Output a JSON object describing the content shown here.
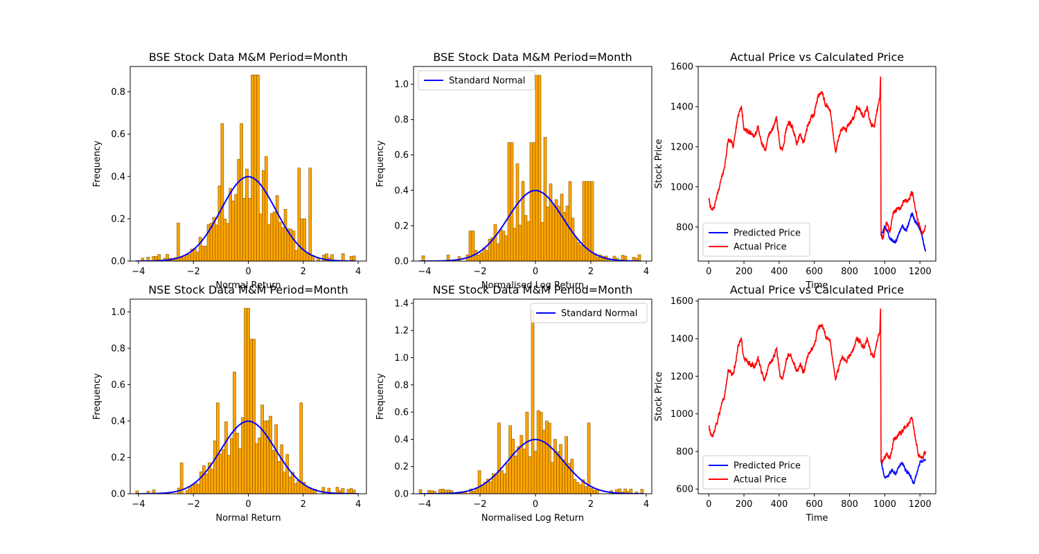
{
  "figure": {
    "background": "#ffffff",
    "colors": {
      "bar": "#FFA500",
      "bar_edge": "#7a5200",
      "normal": "#0000FF",
      "predicted": "#0000FF",
      "actual": "#FF0000"
    }
  },
  "chart_data": [
    {
      "id": "bse-normal",
      "type": "bar",
      "title": "BSE Stock Data M&M Period=Month",
      "xlabel": "Normal Return",
      "ylabel": "Frequency",
      "xlim": [
        -4.3,
        4.3
      ],
      "ylim": [
        0,
        0.92
      ],
      "xticks": [
        -4,
        -2,
        0,
        2,
        4
      ],
      "yticks": [
        0.0,
        0.2,
        0.4,
        0.6,
        0.8
      ],
      "ytick_labels": [
        "0.0",
        "0.2",
        "0.4",
        "0.6",
        "0.8"
      ],
      "hist_seed": 11,
      "hist_range": [
        -4.1,
        3.9
      ],
      "hist_peaks": [
        [
          0.15,
          0.88
        ],
        [
          0.3,
          0.88
        ],
        [
          -0.25,
          0.65
        ],
        [
          -0.95,
          0.65
        ],
        [
          -1.35,
          0.18
        ],
        [
          1.85,
          0.44
        ],
        [
          2.25,
          0.44
        ],
        [
          -2.55,
          0.18
        ],
        [
          2.0,
          0.2
        ]
      ],
      "curve": {
        "name": "Standard Normal",
        "show_legend": false
      },
      "legend": null,
      "grid": false
    },
    {
      "id": "bse-log",
      "type": "bar",
      "title": "BSE Stock Data M&M Period=Month",
      "xlabel": "Normalised Log Return",
      "ylabel": "Frequency",
      "xlim": [
        -4.4,
        4.2
      ],
      "ylim": [
        0,
        1.1
      ],
      "xticks": [
        -4,
        -2,
        0,
        2,
        4
      ],
      "yticks": [
        0.0,
        0.2,
        0.4,
        0.6,
        0.8,
        1.0
      ],
      "ytick_labels": [
        "0.0",
        "0.2",
        "0.4",
        "0.6",
        "0.8",
        "1.0"
      ],
      "hist_seed": 23,
      "hist_range": [
        -4.2,
        3.8
      ],
      "hist_peaks": [
        [
          0.1,
          1.05
        ],
        [
          -0.9,
          0.67
        ],
        [
          -0.65,
          0.55
        ],
        [
          -0.1,
          0.67
        ],
        [
          0.35,
          0.7
        ],
        [
          1.8,
          0.45
        ],
        [
          2.0,
          0.45
        ],
        [
          1.25,
          0.45
        ],
        [
          -2.3,
          0.17
        ]
      ],
      "curve": {
        "name": "Standard Normal",
        "show_legend": true
      },
      "legend": {
        "placement": "upper-left",
        "entries": [
          "Standard Normal"
        ]
      },
      "grid": false
    },
    {
      "id": "bse-price",
      "type": "line",
      "title": "Actual Price vs Calculated Price",
      "xlabel": "Time",
      "ylabel": "Stock Price",
      "xlim": [
        -60,
        1290
      ],
      "ylim": [
        630,
        1600
      ],
      "xticks": [
        0,
        200,
        400,
        600,
        800,
        1000,
        1200
      ],
      "yticks": [
        800,
        1000,
        1200,
        1400,
        1600
      ],
      "series": [
        {
          "name": "Predicted Price",
          "color": "#0000FF",
          "x_start": 978,
          "knots": [
            [
              978,
              760
            ],
            [
              1000,
              800
            ],
            [
              1010,
              790
            ],
            [
              1030,
              745
            ],
            [
              1060,
              720
            ],
            [
              1080,
              770
            ],
            [
              1100,
              810
            ],
            [
              1120,
              780
            ],
            [
              1140,
              830
            ],
            [
              1155,
              870
            ],
            [
              1170,
              830
            ],
            [
              1190,
              810
            ],
            [
              1210,
              760
            ],
            [
              1225,
              700
            ],
            [
              1232,
              680
            ]
          ],
          "noise": 12,
          "seed": 5
        },
        {
          "name": "Actual Price",
          "color": "#FF0000",
          "x_start": 0,
          "knots": [
            [
              0,
              940
            ],
            [
              15,
              880
            ],
            [
              30,
              900
            ],
            [
              60,
              1000
            ],
            [
              90,
              1100
            ],
            [
              110,
              1230
            ],
            [
              140,
              1210
            ],
            [
              165,
              1350
            ],
            [
              185,
              1400
            ],
            [
              200,
              1290
            ],
            [
              230,
              1270
            ],
            [
              260,
              1250
            ],
            [
              280,
              1300
            ],
            [
              300,
              1220
            ],
            [
              320,
              1180
            ],
            [
              340,
              1260
            ],
            [
              370,
              1300
            ],
            [
              385,
              1350
            ],
            [
              405,
              1200
            ],
            [
              420,
              1190
            ],
            [
              440,
              1290
            ],
            [
              460,
              1320
            ],
            [
              480,
              1280
            ],
            [
              500,
              1220
            ],
            [
              520,
              1260
            ],
            [
              540,
              1220
            ],
            [
              560,
              1300
            ],
            [
              580,
              1340
            ],
            [
              600,
              1370
            ],
            [
              620,
              1450
            ],
            [
              645,
              1480
            ],
            [
              660,
              1420
            ],
            [
              690,
              1380
            ],
            [
              710,
              1240
            ],
            [
              720,
              1180
            ],
            [
              740,
              1250
            ],
            [
              760,
              1300
            ],
            [
              780,
              1280
            ],
            [
              800,
              1310
            ],
            [
              820,
              1340
            ],
            [
              840,
              1400
            ],
            [
              860,
              1380
            ],
            [
              880,
              1350
            ],
            [
              900,
              1400
            ],
            [
              920,
              1320
            ],
            [
              940,
              1300
            ],
            [
              960,
              1400
            ],
            [
              972,
              1440
            ],
            [
              976,
              1550
            ],
            [
              979,
              760
            ],
            [
              990,
              750
            ],
            [
              1010,
              820
            ],
            [
              1030,
              780
            ],
            [
              1050,
              880
            ],
            [
              1070,
              890
            ],
            [
              1090,
              900
            ],
            [
              1110,
              930
            ],
            [
              1130,
              930
            ],
            [
              1150,
              970
            ],
            [
              1160,
              960
            ],
            [
              1175,
              880
            ],
            [
              1190,
              820
            ],
            [
              1210,
              770
            ],
            [
              1220,
              770
            ],
            [
              1232,
              810
            ]
          ],
          "noise": 18,
          "seed": 7
        }
      ],
      "legend": {
        "placement": "lower-left",
        "entries": [
          "Predicted Price",
          "Actual Price"
        ]
      },
      "grid": false
    },
    {
      "id": "nse-normal",
      "type": "bar",
      "title": "NSE Stock Data M&M Period=Month",
      "xlabel": "Normal Return",
      "ylabel": "Frequency",
      "xlim": [
        -4.3,
        4.3
      ],
      "ylim": [
        0,
        1.07
      ],
      "xticks": [
        -4,
        -2,
        0,
        2,
        4
      ],
      "yticks": [
        0.0,
        0.2,
        0.4,
        0.6,
        0.8,
        1.0
      ],
      "ytick_labels": [
        "0.0",
        "0.2",
        "0.4",
        "0.6",
        "0.8",
        "1.0"
      ],
      "hist_seed": 37,
      "hist_range": [
        -4.1,
        4.0
      ],
      "hist_peaks": [
        [
          -0.05,
          1.02
        ],
        [
          0.25,
          0.85
        ],
        [
          0.1,
          0.85
        ],
        [
          -0.5,
          0.67
        ],
        [
          -1.1,
          0.5
        ],
        [
          1.9,
          0.5
        ],
        [
          -2.45,
          0.17
        ],
        [
          1.0,
          0.38
        ],
        [
          0.65,
          0.4
        ]
      ],
      "curve": {
        "name": "Standard Normal",
        "show_legend": false
      },
      "legend": null,
      "grid": false
    },
    {
      "id": "nse-log",
      "type": "bar",
      "title": "NSE Stock Data M&M Period=Month",
      "xlabel": "Normalised Log Return",
      "ylabel": "Frequency",
      "xlim": [
        -4.4,
        4.2
      ],
      "ylim": [
        0,
        1.43
      ],
      "xticks": [
        -4,
        -2,
        0,
        2,
        4
      ],
      "yticks": [
        0.0,
        0.2,
        0.4,
        0.6,
        0.8,
        1.0,
        1.2,
        1.4
      ],
      "ytick_labels": [
        "0.0",
        "0.2",
        "0.4",
        "0.6",
        "0.8",
        "1.0",
        "1.2",
        "1.4"
      ],
      "hist_seed": 51,
      "hist_range": [
        -4.2,
        3.9
      ],
      "hist_peaks": [
        [
          -0.05,
          1.35
        ],
        [
          -0.35,
          0.6
        ],
        [
          0.2,
          0.6
        ],
        [
          -1.35,
          0.52
        ],
        [
          1.95,
          0.52
        ],
        [
          0.55,
          0.52
        ],
        [
          -0.9,
          0.5
        ],
        [
          -2.05,
          0.17
        ],
        [
          1.1,
          0.42
        ]
      ],
      "curve": {
        "name": "Standard Normal",
        "show_legend": true
      },
      "legend": {
        "placement": "upper-right",
        "entries": [
          "Standard Normal"
        ]
      },
      "grid": false
    },
    {
      "id": "nse-price",
      "type": "line",
      "title": "Actual Price vs Calculated Price",
      "xlabel": "Time",
      "ylabel": "Stock Price",
      "xlim": [
        -60,
        1290
      ],
      "ylim": [
        575,
        1610
      ],
      "xticks": [
        0,
        200,
        400,
        600,
        800,
        1000,
        1200
      ],
      "yticks": [
        600,
        800,
        1000,
        1200,
        1400,
        1600
      ],
      "series": [
        {
          "name": "Predicted Price",
          "color": "#0000FF",
          "x_start": 978,
          "knots": [
            [
              978,
              760
            ],
            [
              990,
              700
            ],
            [
              1000,
              660
            ],
            [
              1020,
              670
            ],
            [
              1040,
              700
            ],
            [
              1060,
              680
            ],
            [
              1080,
              720
            ],
            [
              1100,
              740
            ],
            [
              1120,
              700
            ],
            [
              1140,
              680
            ],
            [
              1155,
              650
            ],
            [
              1165,
              630
            ],
            [
              1180,
              680
            ],
            [
              1200,
              740
            ],
            [
              1220,
              750
            ],
            [
              1232,
              760
            ]
          ],
          "noise": 10,
          "seed": 9
        },
        {
          "name": "Actual Price",
          "color": "#FF0000",
          "x_start": 0,
          "knots": [
            [
              0,
              940
            ],
            [
              15,
              880
            ],
            [
              30,
              900
            ],
            [
              60,
              1000
            ],
            [
              90,
              1100
            ],
            [
              110,
              1230
            ],
            [
              140,
              1210
            ],
            [
              165,
              1350
            ],
            [
              185,
              1400
            ],
            [
              200,
              1290
            ],
            [
              230,
              1270
            ],
            [
              260,
              1250
            ],
            [
              280,
              1300
            ],
            [
              300,
              1220
            ],
            [
              320,
              1180
            ],
            [
              340,
              1260
            ],
            [
              370,
              1300
            ],
            [
              385,
              1350
            ],
            [
              405,
              1200
            ],
            [
              420,
              1190
            ],
            [
              440,
              1290
            ],
            [
              460,
              1320
            ],
            [
              480,
              1280
            ],
            [
              500,
              1220
            ],
            [
              520,
              1260
            ],
            [
              540,
              1220
            ],
            [
              560,
              1300
            ],
            [
              580,
              1340
            ],
            [
              600,
              1370
            ],
            [
              620,
              1450
            ],
            [
              645,
              1480
            ],
            [
              660,
              1420
            ],
            [
              690,
              1380
            ],
            [
              710,
              1240
            ],
            [
              720,
              1180
            ],
            [
              740,
              1250
            ],
            [
              760,
              1300
            ],
            [
              780,
              1280
            ],
            [
              800,
              1310
            ],
            [
              820,
              1340
            ],
            [
              840,
              1400
            ],
            [
              860,
              1380
            ],
            [
              880,
              1350
            ],
            [
              900,
              1400
            ],
            [
              920,
              1320
            ],
            [
              940,
              1300
            ],
            [
              960,
              1400
            ],
            [
              972,
              1440
            ],
            [
              976,
              1560
            ],
            [
              979,
              760
            ],
            [
              990,
              750
            ],
            [
              1010,
              790
            ],
            [
              1030,
              760
            ],
            [
              1050,
              860
            ],
            [
              1070,
              880
            ],
            [
              1090,
              900
            ],
            [
              1110,
              920
            ],
            [
              1130,
              940
            ],
            [
              1150,
              970
            ],
            [
              1160,
              960
            ],
            [
              1175,
              870
            ],
            [
              1190,
              790
            ],
            [
              1210,
              770
            ],
            [
              1220,
              780
            ],
            [
              1232,
              800
            ]
          ],
          "noise": 18,
          "seed": 13
        }
      ],
      "legend": {
        "placement": "lower-left",
        "entries": [
          "Predicted Price",
          "Actual Price"
        ]
      },
      "grid": false
    }
  ]
}
